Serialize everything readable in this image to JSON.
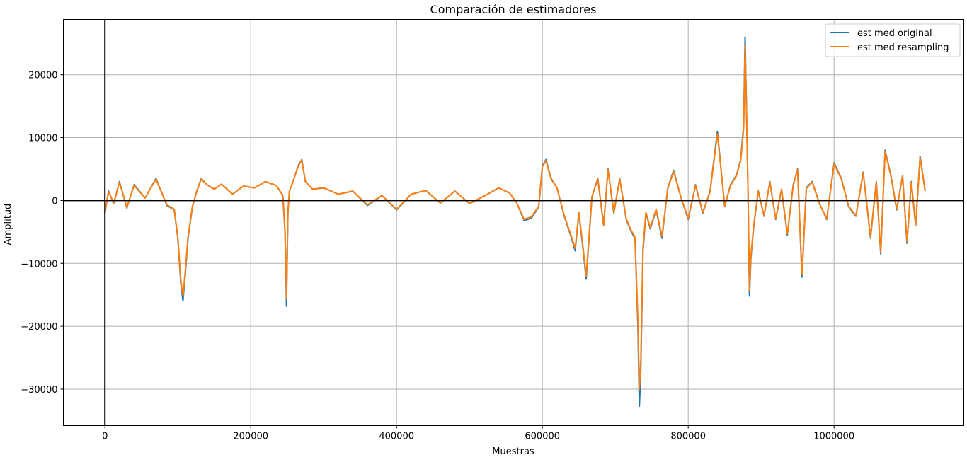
{
  "chart_data": {
    "type": "line",
    "title": "Comparación de estimadores",
    "xlabel": "Muestras",
    "ylabel": "Amplitud",
    "xlim": [
      -57000,
      1178000
    ],
    "ylim": [
      -35800,
      28800
    ],
    "xticks": [
      0,
      200000,
      400000,
      600000,
      800000,
      1000000
    ],
    "xtick_labels": [
      "0",
      "200000",
      "400000",
      "600000",
      "800000",
      "1000000"
    ],
    "yticks": [
      -30000,
      -20000,
      -10000,
      0,
      10000,
      20000
    ],
    "ytick_labels": [
      "−30000",
      "−20000",
      "−10000",
      "0",
      "10000",
      "20000"
    ],
    "grid": true,
    "reference_lines": {
      "x": 0,
      "y": 0
    },
    "legend_position": "upper-right",
    "series": [
      {
        "name": "est med original",
        "color": "#1f77b4",
        "x": [
          0,
          5000,
          12000,
          20000,
          30000,
          40000,
          55000,
          70000,
          85000,
          95000,
          100000,
          104000,
          107000,
          110000,
          114000,
          120000,
          126000,
          132000,
          140000,
          150000,
          160000,
          175000,
          190000,
          205000,
          220000,
          235000,
          244000,
          247000,
          249000,
          250000,
          251000,
          253000,
          258000,
          265000,
          270000,
          275000,
          285000,
          300000,
          320000,
          340000,
          360000,
          380000,
          400000,
          420000,
          440000,
          460000,
          480000,
          500000,
          520000,
          540000,
          555000,
          565000,
          575000,
          585000,
          595000,
          600000,
          605000,
          612000,
          620000,
          630000,
          640000,
          645000,
          650000,
          656000,
          660000,
          668000,
          676000,
          684000,
          690000,
          698000,
          706000,
          715000,
          722000,
          727000,
          731000,
          733000,
          735000,
          738000,
          742000,
          748000,
          756000,
          764000,
          772000,
          780000,
          790000,
          800000,
          810000,
          820000,
          830000,
          840000,
          850000,
          858000,
          866000,
          872000,
          876000,
          878000,
          880000,
          882000,
          884000,
          886000,
          890000,
          896000,
          904000,
          912000,
          920000,
          928000,
          936000,
          944000,
          950000,
          956000,
          962000,
          970000,
          980000,
          990000,
          1000000,
          1010000,
          1020000,
          1030000,
          1040000,
          1050000,
          1058000,
          1064000,
          1070000,
          1078000,
          1086000,
          1094000,
          1100000,
          1106000,
          1112000,
          1118000,
          1125000
        ],
        "y": [
          -2000,
          1500,
          -500,
          3000,
          -1200,
          2500,
          400,
          3500,
          -800,
          -1500,
          -6000,
          -13000,
          -16000,
          -12000,
          -6000,
          -1000,
          1500,
          3500,
          2500,
          1800,
          2600,
          1000,
          2300,
          2000,
          3000,
          2400,
          800,
          -5000,
          -16800,
          -9000,
          -2000,
          1500,
          3000,
          5500,
          6500,
          3000,
          1800,
          2000,
          1000,
          1500,
          -800,
          800,
          -1500,
          1000,
          1600,
          -400,
          1500,
          -500,
          700,
          2000,
          1200,
          -400,
          -3200,
          -2800,
          -1000,
          5500,
          6500,
          3500,
          2000,
          -2500,
          -6000,
          -8000,
          -2000,
          -8000,
          -12500,
          600,
          3500,
          -4000,
          5000,
          -2000,
          3500,
          -3000,
          -5000,
          -6000,
          -20000,
          -32700,
          -27000,
          -8000,
          -2000,
          -4500,
          -1500,
          -6000,
          2000,
          4800,
          500,
          -3000,
          2500,
          -2000,
          1500,
          11000,
          -1000,
          2500,
          4000,
          6500,
          12000,
          26000,
          14000,
          2000,
          -15200,
          -9000,
          -4000,
          1500,
          -2500,
          3000,
          -3000,
          1800,
          -5500,
          2500,
          5000,
          -12200,
          2000,
          3000,
          -500,
          -3000,
          6000,
          3500,
          -1000,
          -2500,
          4500,
          -6000,
          3000,
          -8500,
          8000,
          4000,
          -1500,
          4000,
          -6800,
          3000,
          -4000,
          7000,
          1500
        ]
      },
      {
        "name": "est med resampling",
        "color": "#ff7f0e",
        "x": [
          0,
          5000,
          12000,
          20000,
          30000,
          40000,
          55000,
          70000,
          85000,
          95000,
          100000,
          104000,
          107000,
          110000,
          114000,
          120000,
          126000,
          132000,
          140000,
          150000,
          160000,
          175000,
          190000,
          205000,
          220000,
          235000,
          244000,
          247000,
          249000,
          250000,
          251000,
          253000,
          258000,
          265000,
          270000,
          275000,
          285000,
          300000,
          320000,
          340000,
          360000,
          380000,
          400000,
          420000,
          440000,
          460000,
          480000,
          500000,
          520000,
          540000,
          555000,
          565000,
          575000,
          585000,
          595000,
          600000,
          605000,
          612000,
          620000,
          630000,
          640000,
          645000,
          650000,
          656000,
          660000,
          668000,
          676000,
          684000,
          690000,
          698000,
          706000,
          715000,
          722000,
          727000,
          731000,
          733000,
          735000,
          738000,
          742000,
          748000,
          756000,
          764000,
          772000,
          780000,
          790000,
          800000,
          810000,
          820000,
          830000,
          840000,
          850000,
          858000,
          866000,
          872000,
          876000,
          878000,
          880000,
          882000,
          884000,
          886000,
          890000,
          896000,
          904000,
          912000,
          920000,
          928000,
          936000,
          944000,
          950000,
          956000,
          962000,
          970000,
          980000,
          990000,
          1000000,
          1010000,
          1020000,
          1030000,
          1040000,
          1050000,
          1058000,
          1064000,
          1070000,
          1078000,
          1086000,
          1094000,
          1100000,
          1106000,
          1112000,
          1118000,
          1125000
        ],
        "y": [
          -1800,
          1400,
          -400,
          2900,
          -1100,
          2400,
          400,
          3400,
          -700,
          -1400,
          -5800,
          -12500,
          -15200,
          -11500,
          -5800,
          -900,
          1500,
          3400,
          2500,
          1800,
          2600,
          1000,
          2300,
          2000,
          3000,
          2400,
          800,
          -4800,
          -15500,
          -8500,
          -1900,
          1500,
          3000,
          5400,
          6400,
          3000,
          1800,
          2000,
          1000,
          1500,
          -700,
          800,
          -1400,
          1000,
          1600,
          -400,
          1500,
          -500,
          700,
          2000,
          1200,
          -400,
          -3000,
          -2600,
          -900,
          5400,
          6300,
          3400,
          2000,
          -2400,
          -5800,
          -7600,
          -1900,
          -7700,
          -12000,
          600,
          3400,
          -3900,
          4900,
          -1900,
          3400,
          -2900,
          -4800,
          -5800,
          -19000,
          -30000,
          -25500,
          -7500,
          -1900,
          -4300,
          -1400,
          -5700,
          1900,
          4600,
          500,
          -2800,
          2400,
          -1900,
          1400,
          10600,
          -900,
          2400,
          3900,
          6300,
          11500,
          24700,
          13500,
          1900,
          -14300,
          -8600,
          -3800,
          1500,
          -2400,
          2900,
          -2900,
          1800,
          -5300,
          2400,
          4900,
          -11800,
          1900,
          2900,
          -500,
          -2900,
          5800,
          3400,
          -900,
          -2400,
          4400,
          -5800,
          2900,
          -8200,
          7800,
          3900,
          -1400,
          3900,
          -6500,
          2900,
          -3900,
          6800,
          1500
        ]
      }
    ]
  }
}
